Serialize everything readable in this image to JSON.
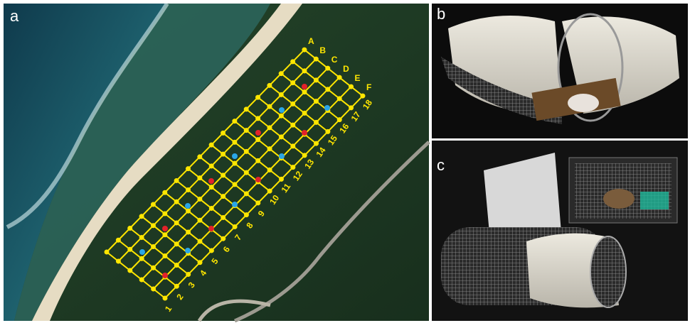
{
  "panels": {
    "a": "a",
    "b": "b",
    "c": "c"
  },
  "grid": {
    "rows": [
      "A",
      "B",
      "C",
      "D",
      "E",
      "F"
    ],
    "columns": [
      "1",
      "2",
      "3",
      "4",
      "5",
      "6",
      "7",
      "8",
      "9",
      "10",
      "11",
      "12",
      "13",
      "14",
      "15",
      "16",
      "17",
      "18"
    ]
  }
}
